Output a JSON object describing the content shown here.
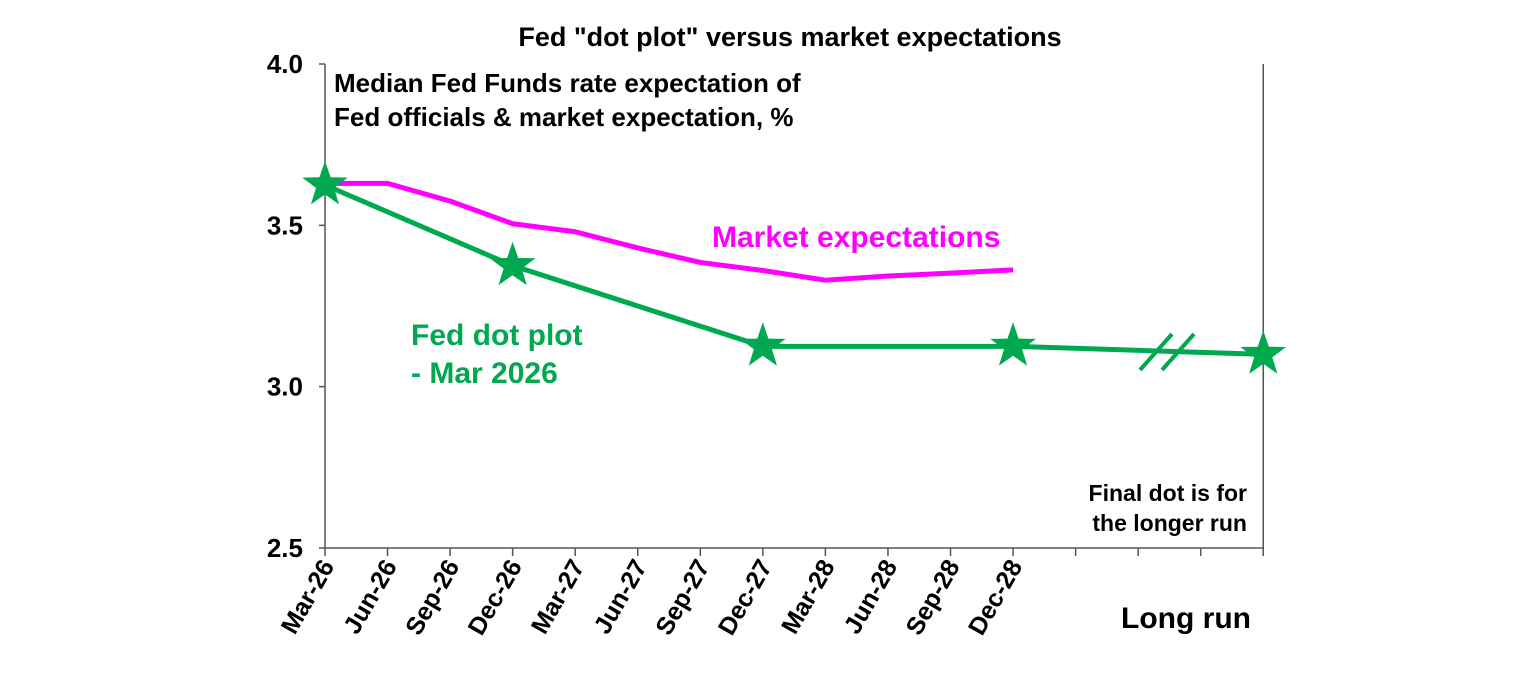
{
  "chart_data": {
    "type": "line",
    "title": "Fed \"dot plot\" versus market expectations",
    "subtitle": "Median Fed Funds rate expectation of\nFed officials & market expectation, %",
    "xlabel": "",
    "ylabel": "",
    "categories": [
      "Mar-26",
      "Jun-26",
      "Sep-26",
      "Dec-26",
      "Mar-27",
      "Jun-27",
      "Sep-27",
      "Dec-27",
      "Mar-28",
      "Jun-28",
      "Sep-28",
      "Dec-28",
      "",
      "",
      "",
      "Long run"
    ],
    "ylim": [
      2.5,
      4.0
    ],
    "yticks": [
      "2.5",
      "3.0",
      "3.5",
      "4.0"
    ],
    "grid": false,
    "series": [
      {
        "name": "Market expectations",
        "color": "#ff00ff",
        "values": [
          3.63,
          3.63,
          3.575,
          3.505,
          3.48,
          3.43,
          3.385,
          3.36,
          3.33,
          3.343,
          3.352,
          3.362,
          null,
          null,
          null,
          null
        ]
      },
      {
        "name": "Fed dot plot\n- Mar 2026",
        "color": "#00a84f",
        "marker": "star",
        "values": [
          3.625,
          null,
          null,
          3.375,
          null,
          null,
          null,
          3.125,
          null,
          null,
          null,
          3.125,
          null,
          null,
          null,
          3.1
        ]
      }
    ],
    "annotations": [
      "Final dot is for\nthe longer run"
    ],
    "axis_break": "between Dec-28 and Long run"
  }
}
